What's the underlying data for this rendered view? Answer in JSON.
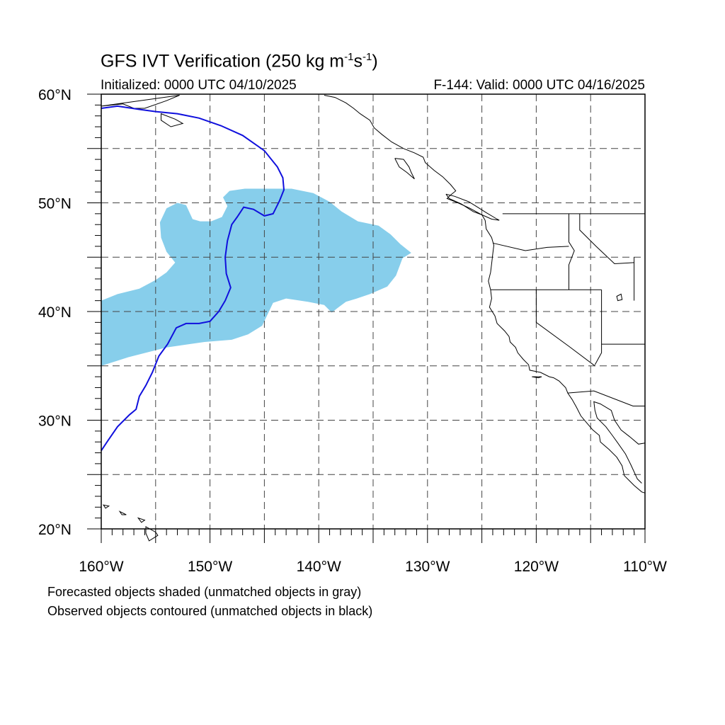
{
  "header": {
    "title_main": "GFS IVT Verification (250 kg m",
    "title_sup1": "-1",
    "title_mid": "s",
    "title_sup2": "-1",
    "title_end": ")",
    "initialized": "Initialized: 0000 UTC 04/10/2025",
    "valid": "F-144: Valid: 0000 UTC 04/16/2025"
  },
  "map": {
    "lon_range": [
      -160,
      -110
    ],
    "lat_range": [
      20,
      60
    ],
    "grid_lines": "dashed",
    "lat_labels": [
      "60°N",
      "50°N",
      "40°N",
      "30°N",
      "20°N"
    ],
    "lon_labels": [
      "160°W",
      "150°W",
      "140°W",
      "130°W",
      "120°W",
      "110°W"
    ],
    "forecast_object": {
      "color": "#87ceeb",
      "polygon": [
        [
          -160,
          41
        ],
        [
          -158.5,
          41.6
        ],
        [
          -156.5,
          42.1
        ],
        [
          -155,
          42.9
        ],
        [
          -154,
          43.6
        ],
        [
          -153.2,
          44.5
        ],
        [
          -154,
          45.5
        ],
        [
          -154.5,
          46.8
        ],
        [
          -154.6,
          48.2
        ],
        [
          -154,
          49.5
        ],
        [
          -153,
          50
        ],
        [
          -152.2,
          49.8
        ],
        [
          -151.6,
          48.5
        ],
        [
          -150.9,
          48.3
        ],
        [
          -149.9,
          48.3
        ],
        [
          -148.9,
          48.7
        ],
        [
          -148.4,
          49.7
        ],
        [
          -148.8,
          50.5
        ],
        [
          -148.2,
          51.1
        ],
        [
          -146.8,
          51.3
        ],
        [
          -144.5,
          51.3
        ],
        [
          -142.5,
          51.3
        ],
        [
          -140.5,
          50.9
        ],
        [
          -139,
          50.1
        ],
        [
          -137.9,
          49.2
        ],
        [
          -136.4,
          48.3
        ],
        [
          -134.5,
          47.9
        ],
        [
          -133.4,
          47.1
        ],
        [
          -132.5,
          46.2
        ],
        [
          -131.5,
          45.4
        ],
        [
          -132.3,
          44.9
        ],
        [
          -132.9,
          43.3
        ],
        [
          -133.7,
          42.3
        ],
        [
          -135.3,
          41.6
        ],
        [
          -136.5,
          41.2
        ],
        [
          -137.5,
          40.9
        ],
        [
          -138.3,
          40.3
        ],
        [
          -138.8,
          39.9
        ],
        [
          -139.5,
          40.6
        ],
        [
          -141,
          40.9
        ],
        [
          -143,
          41.2
        ],
        [
          -144.2,
          40.8
        ],
        [
          -145.2,
          38.7
        ],
        [
          -146.5,
          37.9
        ],
        [
          -148,
          37.4
        ],
        [
          -150.5,
          37.2
        ],
        [
          -154,
          36.7
        ],
        [
          -157.5,
          35.8
        ],
        [
          -160,
          35
        ]
      ]
    },
    "observed_object": {
      "color": "#1010dd",
      "polyline": [
        [
          -160,
          58.7
        ],
        [
          -158.5,
          58.9
        ],
        [
          -156.5,
          58.6
        ],
        [
          -155,
          58.4
        ],
        [
          -153,
          58.2
        ],
        [
          -151,
          57.8
        ],
        [
          -149,
          57.1
        ],
        [
          -147,
          56.2
        ],
        [
          -145,
          54.8
        ],
        [
          -143.8,
          53.3
        ],
        [
          -143.3,
          52.3
        ],
        [
          -143.2,
          51.2
        ],
        [
          -143.6,
          50.2
        ],
        [
          -144.2,
          49
        ],
        [
          -145,
          48.8
        ],
        [
          -146,
          49.4
        ],
        [
          -146.9,
          49.6
        ],
        [
          -147.5,
          48.7
        ],
        [
          -148,
          48
        ],
        [
          -148.4,
          46.5
        ],
        [
          -148.6,
          45
        ],
        [
          -148.5,
          43.5
        ],
        [
          -148.1,
          42.2
        ],
        [
          -148.6,
          41
        ],
        [
          -149.2,
          40
        ],
        [
          -150,
          39.1
        ],
        [
          -151,
          38.9
        ],
        [
          -152.2,
          38.9
        ],
        [
          -153.1,
          38.5
        ],
        [
          -153.9,
          37
        ],
        [
          -154.7,
          35.9
        ],
        [
          -155.3,
          34.4
        ],
        [
          -155.9,
          33.2
        ],
        [
          -156.5,
          32.2
        ],
        [
          -156.8,
          31
        ],
        [
          -157.4,
          30.5
        ],
        [
          -158.5,
          29.4
        ],
        [
          -159.4,
          28.1
        ],
        [
          -160,
          27.2
        ]
      ]
    }
  },
  "footer": {
    "note1": "Forecasted objects shaded (unmatched objects in gray)",
    "note2": "Observed objects contoured (unmatched objects in black)"
  }
}
